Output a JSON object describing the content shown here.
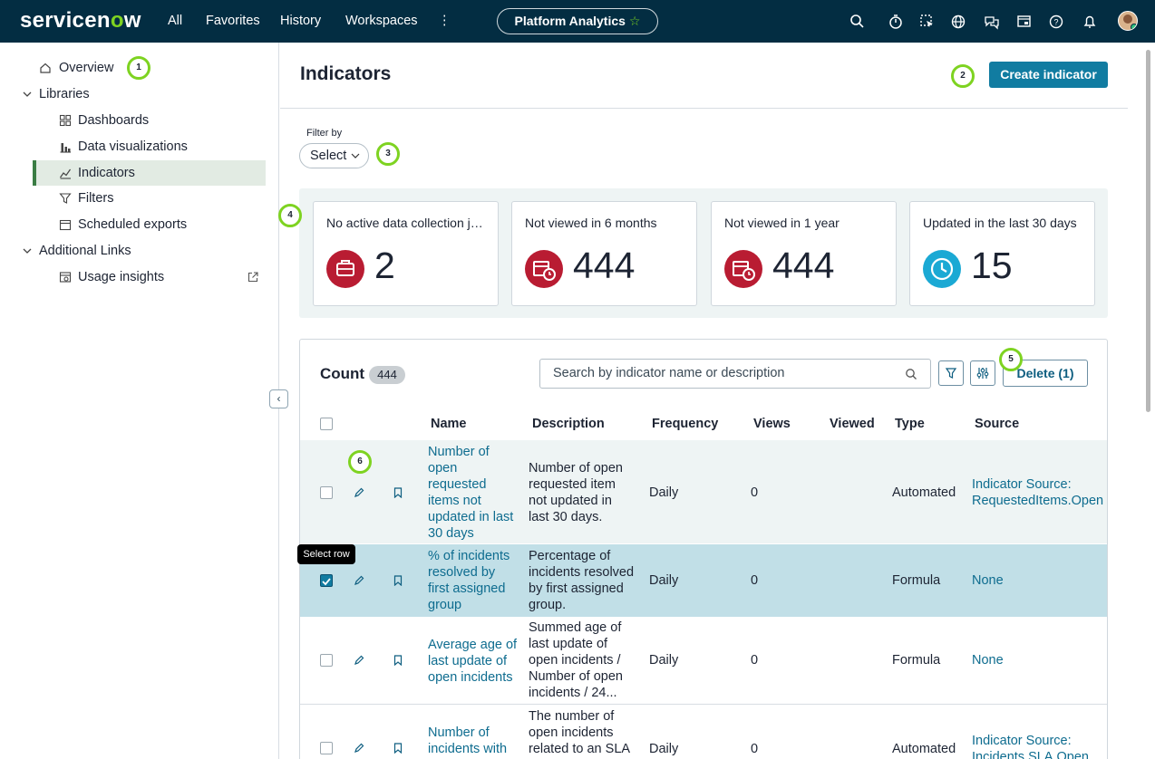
{
  "topbar": {
    "logo_text": "servicenow",
    "nav": [
      "All",
      "Favorites",
      "History",
      "Workspaces"
    ],
    "more_label": "⋮",
    "workspace_pill": "Platform Analytics",
    "pill_star": "☆"
  },
  "sidebar": {
    "overview": "Overview",
    "libraries": "Libraries",
    "dashboards": "Dashboards",
    "data_visualizations": "Data visualizations",
    "indicators": "Indicators",
    "filters": "Filters",
    "scheduled_exports": "Scheduled exports",
    "additional_links": "Additional Links",
    "usage_insights": "Usage insights",
    "collapse": "‹"
  },
  "main": {
    "title": "Indicators",
    "create_button": "Create indicator",
    "filter_label": "Filter by",
    "select_label": "Select"
  },
  "cards": [
    {
      "title": "No active data collection jobs",
      "value": "2",
      "icon": "briefcase-icon",
      "color": "#b91c32"
    },
    {
      "title": "Not viewed in 6 months",
      "value": "444",
      "icon": "calendar-clock-icon",
      "color": "#b91c32"
    },
    {
      "title": "Not viewed in 1 year",
      "value": "444",
      "icon": "calendar-clock-icon",
      "color": "#b91c32"
    },
    {
      "title": "Updated in the last 30 days",
      "value": "15",
      "icon": "clock-icon",
      "color": "#1ba9d4"
    }
  ],
  "table": {
    "count_label": "Count",
    "count_value": "444",
    "search_placeholder": "Search by indicator name or description",
    "delete_button": "Delete (1)",
    "headers": [
      "Name",
      "Description",
      "Frequency",
      "Views",
      "Viewed",
      "Type",
      "Source"
    ],
    "rows": [
      {
        "name": [
          "Number of",
          "open",
          "requested",
          "items not",
          "updated in last",
          "30 days"
        ],
        "description": [
          "Number of open",
          "requested item",
          "not updated in",
          "last 30 days."
        ],
        "frequency": "Daily",
        "views": "0",
        "type": "Automated",
        "source": [
          "Indicator Source:",
          "RequestedItems.Open"
        ],
        "checked": false
      },
      {
        "name": [
          "% of incidents",
          "resolved by",
          "first assigned",
          "group"
        ],
        "description": [
          "Percentage of",
          "incidents resolved",
          "by first assigned",
          "group."
        ],
        "frequency": "Daily",
        "views": "0",
        "type": "Formula",
        "source": [
          "None"
        ],
        "checked": true
      },
      {
        "name": [
          "Average age of",
          "last update of",
          "open incidents"
        ],
        "description": [
          "Summed age of",
          "last update of",
          "open incidents /",
          "Number of open",
          "incidents / 24..."
        ],
        "frequency": "Daily",
        "views": "0",
        "type": "Formula",
        "source": [
          "None"
        ],
        "checked": false
      },
      {
        "name": [
          "Number of",
          "incidents with"
        ],
        "description": [
          "The number of",
          "open incidents",
          "related to an SLA"
        ],
        "frequency": "Daily",
        "views": "0",
        "type": "Automated",
        "source": [
          "Indicator Source:",
          "Incidents.SLA.Open"
        ],
        "checked": false
      }
    ]
  },
  "tooltip": "Select row",
  "markers": [
    "1",
    "2",
    "3",
    "4",
    "5",
    "6"
  ],
  "accent_color": "#7ed321",
  "brand_dark": "#032d42",
  "primary_button_color": "#117ca1"
}
